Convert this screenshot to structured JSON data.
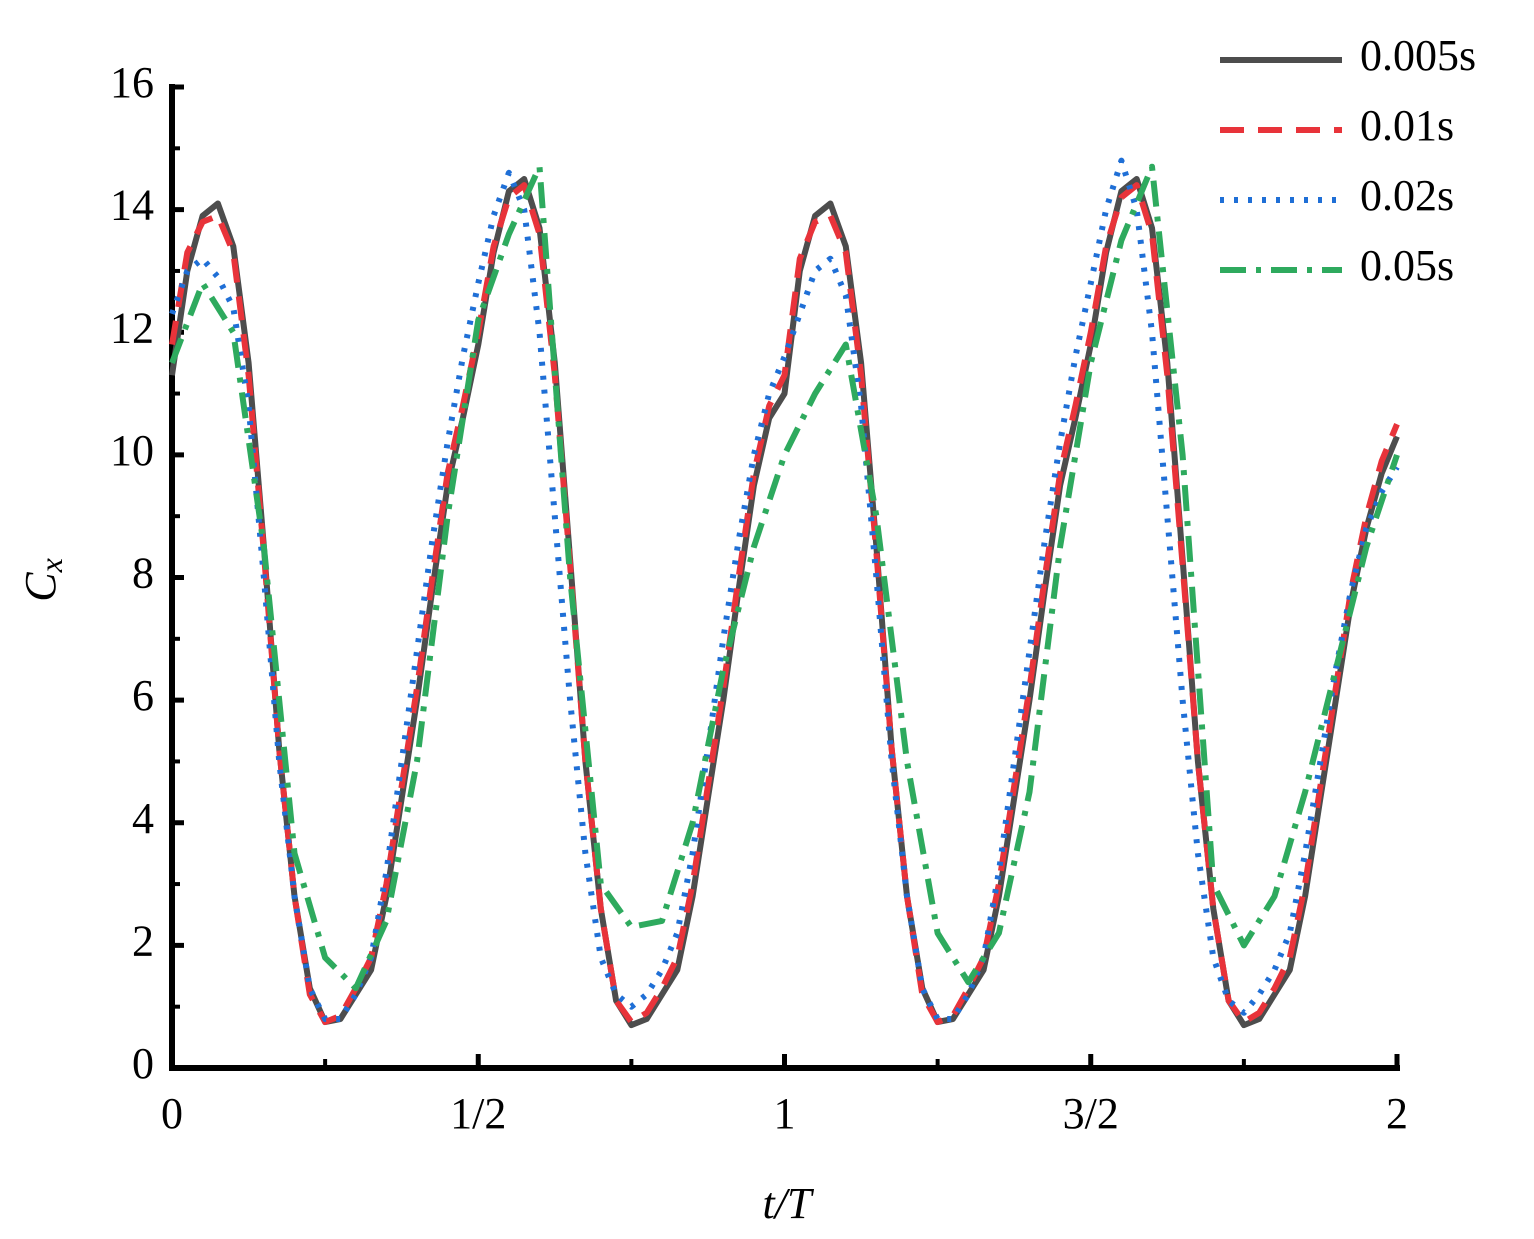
{
  "chart_data": {
    "type": "line",
    "xlabel": "t/T",
    "ylabel": {
      "text": "C",
      "subscript": "x"
    },
    "xlim": [
      0,
      2
    ],
    "ylim": [
      0,
      16
    ],
    "xticks": [
      0,
      {
        "value": 0.5,
        "label": "1/2"
      },
      1,
      {
        "value": 1.5,
        "label": "3/2"
      },
      2
    ],
    "xminorticks": [
      0.25,
      0.75,
      1.25,
      1.75
    ],
    "yticks": [
      0,
      2,
      4,
      6,
      8,
      10,
      12,
      14,
      16
    ],
    "yminorticks": [
      1,
      3,
      5,
      7,
      9,
      11,
      13,
      15
    ],
    "grid": false,
    "legend": "upper right",
    "series": [
      {
        "name": "0.005s",
        "color": "#4d4d4d",
        "style": "solid",
        "x": [
          0,
          0.025,
          0.05,
          0.075,
          0.1,
          0.125,
          0.15,
          0.175,
          0.2,
          0.225,
          0.25,
          0.275,
          0.3,
          0.325,
          0.35,
          0.375,
          0.4,
          0.425,
          0.45,
          0.475,
          0.5,
          0.525,
          0.55,
          0.575,
          0.6,
          0.625,
          0.65,
          0.675,
          0.7,
          0.725,
          0.75,
          0.775,
          0.8,
          0.825,
          0.85,
          0.875,
          0.9,
          0.925,
          0.95,
          0.975,
          1,
          1.025,
          1.05,
          1.075,
          1.1,
          1.125,
          1.15,
          1.175,
          1.2,
          1.225,
          1.25,
          1.275,
          1.3,
          1.325,
          1.35,
          1.375,
          1.4,
          1.425,
          1.45,
          1.475,
          1.5,
          1.525,
          1.55,
          1.575,
          1.6,
          1.625,
          1.65,
          1.675,
          1.7,
          1.725,
          1.75,
          1.775,
          1.8,
          1.825,
          1.85,
          1.875,
          1.9,
          1.925,
          1.95,
          1.975,
          2
        ],
        "values": [
          11.3,
          13.0,
          13.9,
          14.1,
          13.4,
          11.5,
          8.5,
          5.2,
          2.8,
          1.3,
          0.75,
          0.8,
          1.2,
          1.6,
          2.8,
          4.4,
          6.0,
          7.8,
          9.5,
          10.6,
          11.8,
          13.3,
          14.3,
          14.5,
          13.7,
          11.5,
          8.3,
          5.0,
          2.6,
          1.1,
          0.7,
          0.8,
          1.2,
          1.6,
          2.8,
          4.4,
          6.0,
          7.8,
          9.5,
          10.6,
          11.0,
          13.0,
          13.9,
          14.1,
          13.4,
          11.5,
          8.5,
          5.2,
          2.8,
          1.3,
          0.75,
          0.8,
          1.2,
          1.6,
          2.8,
          4.4,
          6.0,
          7.8,
          9.5,
          10.6,
          11.8,
          13.3,
          14.3,
          14.5,
          13.7,
          11.5,
          8.3,
          5.0,
          2.6,
          1.1,
          0.7,
          0.8,
          1.2,
          1.6,
          2.8,
          4.4,
          6.0,
          7.6,
          8.8,
          9.7,
          10.3
        ]
      },
      {
        "name": "0.01s",
        "color": "#e8333a",
        "style": "dashed",
        "x": [
          0,
          0.025,
          0.05,
          0.075,
          0.1,
          0.125,
          0.15,
          0.175,
          0.2,
          0.225,
          0.25,
          0.275,
          0.3,
          0.325,
          0.35,
          0.375,
          0.4,
          0.425,
          0.45,
          0.475,
          0.5,
          0.525,
          0.55,
          0.575,
          0.6,
          0.625,
          0.65,
          0.675,
          0.7,
          0.725,
          0.75,
          0.775,
          0.8,
          0.825,
          0.85,
          0.875,
          0.9,
          0.925,
          0.95,
          0.975,
          1,
          1.025,
          1.05,
          1.075,
          1.1,
          1.125,
          1.15,
          1.175,
          1.2,
          1.225,
          1.25,
          1.275,
          1.3,
          1.325,
          1.35,
          1.375,
          1.4,
          1.425,
          1.45,
          1.475,
          1.5,
          1.525,
          1.55,
          1.575,
          1.6,
          1.625,
          1.65,
          1.675,
          1.7,
          1.725,
          1.75,
          1.775,
          1.8,
          1.825,
          1.85,
          1.875,
          1.9,
          1.925,
          1.95,
          1.975,
          2
        ],
        "values": [
          11.8,
          13.3,
          13.8,
          13.9,
          13.3,
          11.3,
          8.4,
          5.2,
          2.8,
          1.2,
          0.75,
          0.85,
          1.3,
          1.8,
          3.0,
          4.6,
          6.2,
          8.0,
          9.7,
          10.8,
          12.0,
          13.4,
          14.2,
          14.4,
          13.6,
          11.3,
          8.2,
          5.0,
          2.6,
          1.1,
          0.75,
          0.9,
          1.3,
          1.8,
          3.0,
          4.6,
          6.2,
          8.0,
          9.7,
          10.8,
          11.3,
          13.2,
          13.8,
          13.9,
          13.3,
          11.3,
          8.4,
          5.2,
          2.8,
          1.2,
          0.75,
          0.85,
          1.3,
          1.8,
          3.0,
          4.6,
          6.2,
          8.0,
          9.7,
          10.8,
          12.0,
          13.4,
          14.2,
          14.4,
          13.6,
          11.3,
          8.2,
          5.0,
          2.6,
          1.1,
          0.75,
          0.9,
          1.3,
          1.8,
          3.0,
          4.6,
          6.2,
          7.8,
          9.0,
          9.9,
          10.5
        ]
      },
      {
        "name": "0.02s",
        "color": "#1f6fd6",
        "style": "dotted",
        "x": [
          0,
          0.025,
          0.05,
          0.075,
          0.1,
          0.125,
          0.15,
          0.175,
          0.2,
          0.225,
          0.25,
          0.275,
          0.3,
          0.325,
          0.35,
          0.375,
          0.4,
          0.425,
          0.45,
          0.475,
          0.5,
          0.525,
          0.55,
          0.575,
          0.6,
          0.625,
          0.65,
          0.675,
          0.7,
          0.725,
          0.75,
          0.775,
          0.8,
          0.825,
          0.85,
          0.875,
          0.9,
          0.925,
          0.95,
          0.975,
          1,
          1.025,
          1.05,
          1.075,
          1.1,
          1.125,
          1.15,
          1.175,
          1.2,
          1.225,
          1.25,
          1.275,
          1.3,
          1.325,
          1.35,
          1.375,
          1.4,
          1.425,
          1.45,
          1.475,
          1.5,
          1.525,
          1.55,
          1.575,
          1.6,
          1.625,
          1.65,
          1.675,
          1.7,
          1.725,
          1.75,
          1.775,
          1.8,
          1.825,
          1.85,
          1.875,
          1.9,
          1.925,
          1.95,
          1.975,
          2
        ],
        "values": [
          12.3,
          13.0,
          13.2,
          12.9,
          12.4,
          10.8,
          8.0,
          5.0,
          2.8,
          1.3,
          0.8,
          0.8,
          1.2,
          1.8,
          3.2,
          5.0,
          6.8,
          8.6,
          10.2,
          11.6,
          12.8,
          13.9,
          14.6,
          14.0,
          12.0,
          9.0,
          6.0,
          3.5,
          1.8,
          1.2,
          1.0,
          1.2,
          1.6,
          2.2,
          3.5,
          5.2,
          7.0,
          8.6,
          10.0,
          11.0,
          11.6,
          12.3,
          13.0,
          13.2,
          12.6,
          10.8,
          8.0,
          5.0,
          2.8,
          1.3,
          0.8,
          0.8,
          1.2,
          1.8,
          3.2,
          5.0,
          6.8,
          8.6,
          10.2,
          11.6,
          12.8,
          14.0,
          14.8,
          14.0,
          12.0,
          9.0,
          6.0,
          3.5,
          1.8,
          1.1,
          0.9,
          1.2,
          1.6,
          2.2,
          3.5,
          5.0,
          6.5,
          7.8,
          8.8,
          9.4,
          9.8
        ]
      },
      {
        "name": "0.05s",
        "color": "#2eaa5e",
        "style": "dashdot",
        "x": [
          0,
          0.05,
          0.1,
          0.15,
          0.2,
          0.25,
          0.3,
          0.35,
          0.4,
          0.45,
          0.5,
          0.55,
          0.6,
          0.65,
          0.7,
          0.75,
          0.8,
          0.85,
          0.9,
          0.95,
          1,
          1.05,
          1.1,
          1.15,
          1.2,
          1.25,
          1.3,
          1.35,
          1.4,
          1.45,
          1.5,
          1.55,
          1.6,
          1.65,
          1.7,
          1.75,
          1.8,
          1.85,
          1.9,
          1.95,
          2
        ],
        "values": [
          11.5,
          12.8,
          12.0,
          8.5,
          3.5,
          1.8,
          1.3,
          2.4,
          5.0,
          9.0,
          12.2,
          13.6,
          14.7,
          8.0,
          3.0,
          2.3,
          2.4,
          4.0,
          6.5,
          8.5,
          10.0,
          11.0,
          11.8,
          9.0,
          5.0,
          2.2,
          1.4,
          2.2,
          4.5,
          8.5,
          11.5,
          13.5,
          14.7,
          10.0,
          3.0,
          2.0,
          2.8,
          4.5,
          6.5,
          8.5,
          10.0
        ]
      }
    ]
  }
}
